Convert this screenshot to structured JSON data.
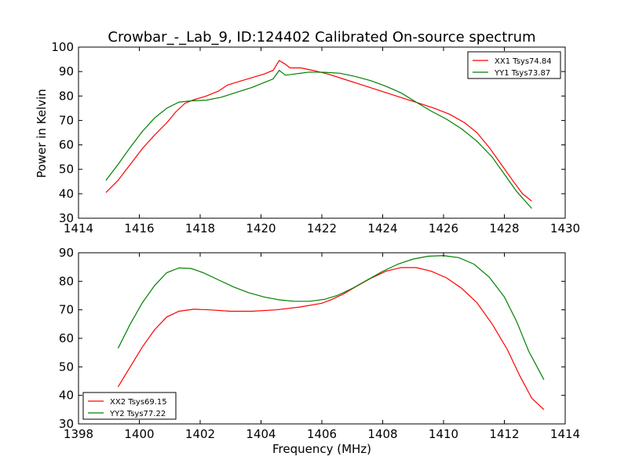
{
  "title": "Crowbar_-_Lab_9, ID:124402 Calibrated On-source spectrum",
  "ylabel": "Power in Kelvin",
  "xlabel": "Frequency (MHz)",
  "chart_data": [
    {
      "type": "line",
      "grid": false,
      "legend_position": "top-right",
      "xlim": [
        1414,
        1430
      ],
      "ylim": [
        30,
        100
      ],
      "xticks": [
        1414,
        1416,
        1418,
        1420,
        1422,
        1424,
        1426,
        1428,
        1430
      ],
      "yticks": [
        30,
        40,
        50,
        60,
        70,
        80,
        90,
        100
      ],
      "series": [
        {
          "name": "XX1 Tsys74.84",
          "color": "#ff0000",
          "points": [
            [
              1414.9,
              40.5
            ],
            [
              1415.3,
              45.5
            ],
            [
              1415.7,
              52
            ],
            [
              1416.1,
              58.5
            ],
            [
              1416.5,
              64
            ],
            [
              1416.9,
              69
            ],
            [
              1417.2,
              73.5
            ],
            [
              1417.5,
              77
            ],
            [
              1417.8,
              78.5
            ],
            [
              1418.2,
              80
            ],
            [
              1418.6,
              82
            ],
            [
              1418.9,
              84.5
            ],
            [
              1419.3,
              86
            ],
            [
              1419.7,
              87.5
            ],
            [
              1420.1,
              89
            ],
            [
              1420.4,
              90.5
            ],
            [
              1420.6,
              94.5
            ],
            [
              1420.8,
              93
            ],
            [
              1420.95,
              91.5
            ],
            [
              1421.3,
              91.5
            ],
            [
              1421.7,
              90.5
            ],
            [
              1422.2,
              89
            ],
            [
              1422.7,
              87
            ],
            [
              1423.2,
              85
            ],
            [
              1423.7,
              83
            ],
            [
              1424.2,
              81
            ],
            [
              1424.7,
              79
            ],
            [
              1425.2,
              77
            ],
            [
              1425.7,
              75
            ],
            [
              1426.2,
              72.5
            ],
            [
              1426.7,
              69
            ],
            [
              1427.1,
              65
            ],
            [
              1427.5,
              59
            ],
            [
              1427.9,
              52
            ],
            [
              1428.3,
              45
            ],
            [
              1428.6,
              40
            ],
            [
              1428.9,
              37
            ]
          ]
        },
        {
          "name": "YY1 Tsys73.87",
          "color": "#008000",
          "points": [
            [
              1414.9,
              45.5
            ],
            [
              1415.3,
              52
            ],
            [
              1415.7,
              59
            ],
            [
              1416.1,
              65.5
            ],
            [
              1416.5,
              71
            ],
            [
              1416.9,
              75
            ],
            [
              1417.3,
              77.5
            ],
            [
              1417.7,
              78
            ],
            [
              1418.2,
              78.3
            ],
            [
              1418.7,
              79.5
            ],
            [
              1419.2,
              81.5
            ],
            [
              1419.7,
              83.5
            ],
            [
              1420.1,
              85.5
            ],
            [
              1420.4,
              87
            ],
            [
              1420.6,
              90.5
            ],
            [
              1420.8,
              88.5
            ],
            [
              1421.1,
              89
            ],
            [
              1421.6,
              89.8
            ],
            [
              1422.1,
              89.7
            ],
            [
              1422.6,
              89.3
            ],
            [
              1423.1,
              88
            ],
            [
              1423.6,
              86.3
            ],
            [
              1424.1,
              84
            ],
            [
              1424.6,
              81.3
            ],
            [
              1425.1,
              77.5
            ],
            [
              1425.6,
              73.8
            ],
            [
              1426.1,
              70.5
            ],
            [
              1426.6,
              66.5
            ],
            [
              1427.1,
              61.5
            ],
            [
              1427.6,
              55
            ],
            [
              1428.0,
              48
            ],
            [
              1428.4,
              41
            ],
            [
              1428.9,
              34
            ]
          ]
        }
      ]
    },
    {
      "type": "line",
      "grid": false,
      "legend_position": "bottom-left",
      "xlim": [
        1398,
        1414
      ],
      "ylim": [
        30,
        90
      ],
      "xticks": [
        1398,
        1400,
        1402,
        1404,
        1406,
        1408,
        1410,
        1412,
        1414
      ],
      "yticks": [
        30,
        40,
        50,
        60,
        70,
        80,
        90
      ],
      "series": [
        {
          "name": "XX2 Tsys69.15",
          "color": "#ff0000",
          "points": [
            [
              1399.3,
              43
            ],
            [
              1399.7,
              50
            ],
            [
              1400.1,
              57
            ],
            [
              1400.5,
              63
            ],
            [
              1400.9,
              67.5
            ],
            [
              1401.3,
              69.5
            ],
            [
              1401.8,
              70.2
            ],
            [
              1402.3,
              70
            ],
            [
              1403.0,
              69.5
            ],
            [
              1403.7,
              69.5
            ],
            [
              1404.5,
              70
            ],
            [
              1405.3,
              71
            ],
            [
              1406.0,
              72.3
            ],
            [
              1406.3,
              73.5
            ],
            [
              1406.7,
              75.5
            ],
            [
              1407.1,
              78
            ],
            [
              1407.6,
              81
            ],
            [
              1408.1,
              83.5
            ],
            [
              1408.6,
              84.8
            ],
            [
              1409.1,
              84.8
            ],
            [
              1409.6,
              83.5
            ],
            [
              1410.1,
              81.2
            ],
            [
              1410.6,
              77.5
            ],
            [
              1411.1,
              72.5
            ],
            [
              1411.6,
              65
            ],
            [
              1412.1,
              56
            ],
            [
              1412.5,
              47
            ],
            [
              1412.9,
              39
            ],
            [
              1413.3,
              35
            ]
          ]
        },
        {
          "name": "YY2 Tsys77.22",
          "color": "#008000",
          "points": [
            [
              1399.3,
              56.5
            ],
            [
              1399.7,
              65
            ],
            [
              1400.1,
              72.5
            ],
            [
              1400.5,
              78.5
            ],
            [
              1400.9,
              83
            ],
            [
              1401.3,
              84.7
            ],
            [
              1401.7,
              84.5
            ],
            [
              1402.1,
              83
            ],
            [
              1402.6,
              80.5
            ],
            [
              1403.1,
              78
            ],
            [
              1403.6,
              76
            ],
            [
              1404.1,
              74.5
            ],
            [
              1404.6,
              73.5
            ],
            [
              1405.1,
              73
            ],
            [
              1405.6,
              73
            ],
            [
              1406.1,
              73.7
            ],
            [
              1406.5,
              75
            ],
            [
              1407.0,
              77.5
            ],
            [
              1407.5,
              80.5
            ],
            [
              1408.0,
              83.5
            ],
            [
              1408.5,
              86
            ],
            [
              1409.0,
              87.8
            ],
            [
              1409.5,
              88.8
            ],
            [
              1410.0,
              89
            ],
            [
              1410.5,
              88.3
            ],
            [
              1411.0,
              86
            ],
            [
              1411.5,
              81.5
            ],
            [
              1412.0,
              74.5
            ],
            [
              1412.4,
              66
            ],
            [
              1412.8,
              55.5
            ],
            [
              1413.3,
              45.5
            ]
          ]
        }
      ]
    }
  ]
}
